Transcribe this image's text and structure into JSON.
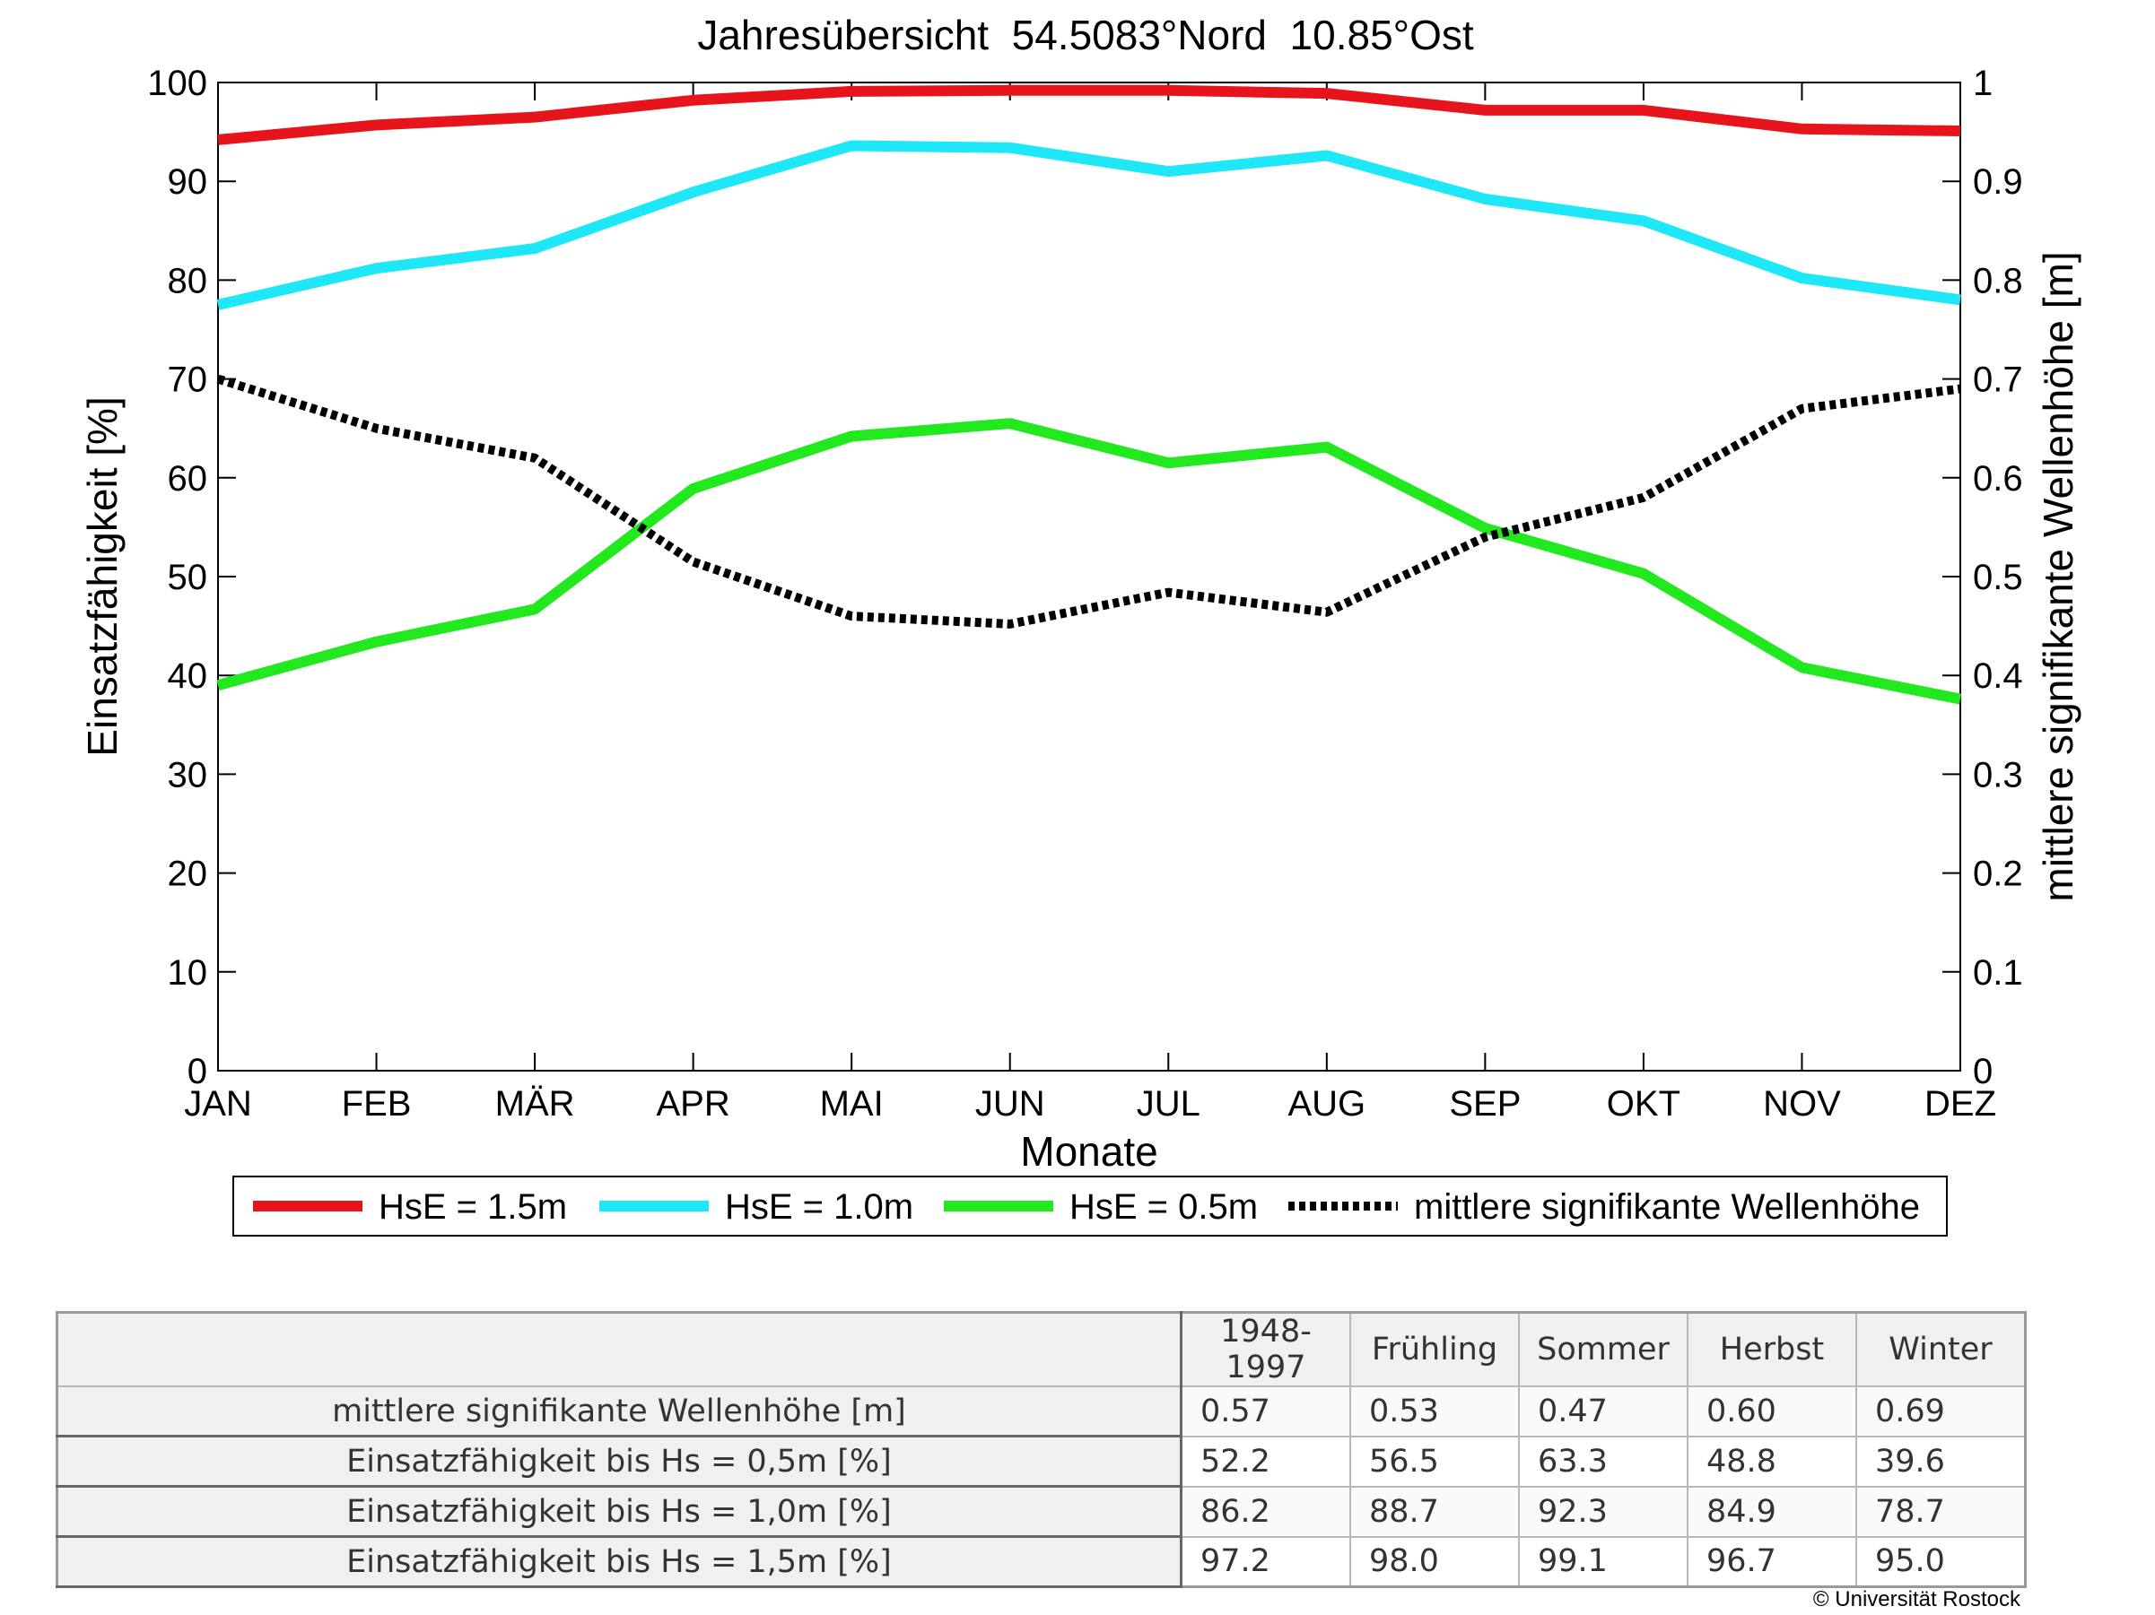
{
  "chart_data": {
    "type": "line",
    "title": "Jahresübersicht  54.5083°Nord  10.85°Ost",
    "xlabel": "Monate",
    "ylabel_left": "Einsatzfähigkeit [%]",
    "ylabel_right": "mittlere signifikante Wellenhöhe [m]",
    "ylim_left": [
      0,
      100
    ],
    "ylim_right": [
      0,
      1
    ],
    "yticks_left": [
      "0",
      "10",
      "20",
      "30",
      "40",
      "50",
      "60",
      "70",
      "80",
      "90",
      "100"
    ],
    "yticks_right": [
      "0",
      "0.1",
      "0.2",
      "0.3",
      "0.4",
      "0.5",
      "0.6",
      "0.7",
      "0.8",
      "0.9",
      "1"
    ],
    "categories": [
      "JAN",
      "FEB",
      "MÄR",
      "APR",
      "MAI",
      "JUN",
      "JUL",
      "AUG",
      "SEP",
      "OKT",
      "NOV",
      "DEZ"
    ],
    "grid": false,
    "legend_position": "bottom",
    "series": [
      {
        "name": "HsE = 1.5m",
        "axis": "left",
        "color": "#e8141c",
        "style": "solid",
        "values": [
          94.2,
          95.7,
          96.5,
          98.2,
          99.1,
          99.2,
          99.2,
          98.9,
          97.2,
          97.2,
          95.3,
          95.1
        ]
      },
      {
        "name": "HsE = 1.0m",
        "axis": "left",
        "color": "#1ee8f8",
        "style": "solid",
        "values": [
          77.5,
          81.2,
          83.2,
          88.9,
          93.6,
          93.4,
          91.0,
          92.6,
          88.2,
          86.0,
          80.2,
          78.0
        ]
      },
      {
        "name": "HsE = 0.5m",
        "axis": "left",
        "color": "#22e81e",
        "style": "solid",
        "values": [
          39.0,
          43.4,
          46.7,
          58.9,
          64.2,
          65.5,
          61.5,
          63.1,
          54.9,
          50.3,
          40.8,
          37.6
        ]
      },
      {
        "name": "mittlere signifikante Wellenhöhe",
        "axis": "right",
        "color": "#000000",
        "style": "dotted",
        "values": [
          0.7,
          0.65,
          0.62,
          0.515,
          0.46,
          0.452,
          0.484,
          0.464,
          0.54,
          0.58,
          0.67,
          0.69
        ]
      }
    ]
  },
  "table": {
    "headers": [
      "1948-1997",
      "Frühling",
      "Sommer",
      "Herbst",
      "Winter"
    ],
    "rows": [
      {
        "label": "mittlere signifikante Wellenhöhe [m]",
        "values": [
          "0.57",
          "0.53",
          "0.47",
          "0.60",
          "0.69"
        ]
      },
      {
        "label": "Einsatzfähigkeit bis Hs = 0,5m [%]",
        "values": [
          "52.2",
          "56.5",
          "63.3",
          "48.8",
          "39.6"
        ]
      },
      {
        "label": "Einsatzfähigkeit bis Hs = 1,0m [%]",
        "values": [
          "86.2",
          "88.7",
          "92.3",
          "84.9",
          "78.7"
        ]
      },
      {
        "label": "Einsatzfähigkeit bis Hs = 1,5m [%]",
        "values": [
          "97.2",
          "98.0",
          "99.1",
          "96.7",
          "95.0"
        ]
      }
    ]
  },
  "footer": {
    "copyright": "© Universität Rostock"
  }
}
